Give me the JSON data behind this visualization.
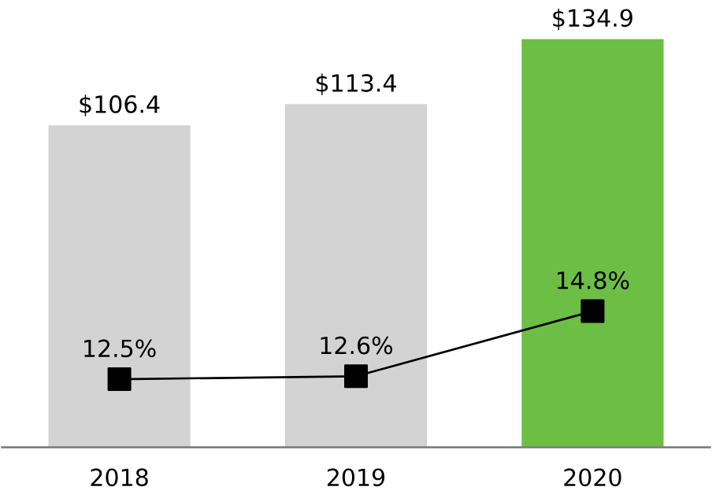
{
  "chart_data": {
    "type": "bar",
    "categories": [
      "2018",
      "2019",
      "2020"
    ],
    "series": [
      {
        "colors": [
          "#d3d3d3",
          "#d3d3d3",
          "#6dbe45"
        ],
        "values": [
          106.4,
          113.4,
          134.9
        ],
        "value_labels": [
          "$106.4",
          "$113.4",
          "$134.9"
        ]
      },
      {
        "type": "line",
        "axis": "y2",
        "color": "#000000",
        "marker": "square",
        "values": [
          12.5,
          12.6,
          14.8
        ],
        "value_labels": [
          "12.5%",
          "12.6%",
          "14.8%"
        ]
      }
    ],
    "tick_labels": "x"
  }
}
